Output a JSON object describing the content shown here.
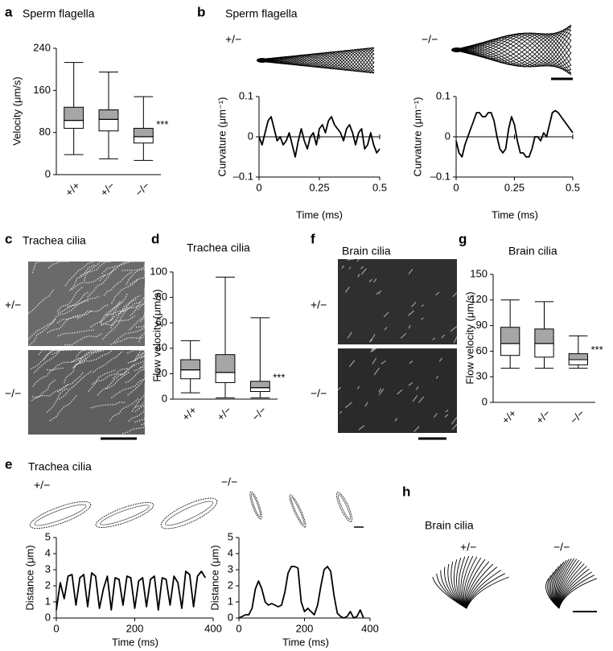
{
  "chart_data": [
    {
      "type": "box",
      "label": "a",
      "title": "Sperm flagella",
      "y_label": "Velocity (μm/s)",
      "categories": [
        "+/+",
        "+/−",
        "−/−"
      ],
      "boxes": [
        {
          "min": 38,
          "q1": 88,
          "median": 103,
          "q3": 128,
          "max": 213
        },
        {
          "min": 30,
          "q1": 83,
          "median": 105,
          "q3": 123,
          "max": 195
        },
        {
          "min": 27,
          "q1": 60,
          "median": 72,
          "q3": 88,
          "max": 148
        }
      ],
      "ylim": [
        0,
        240
      ],
      "yticks": [
        0,
        80,
        160,
        240
      ],
      "annotation": "***",
      "colors": {
        "upper": "#a6a6a6",
        "lower": "#ffffff"
      }
    },
    {
      "type": "line",
      "y_label": "Curvature (μm⁻¹)",
      "x_label": "Time (ms)",
      "x": [
        0,
        0.0125,
        0.025,
        0.0375,
        0.05,
        0.0625,
        0.075,
        0.0875,
        0.1,
        0.1125,
        0.125,
        0.1375,
        0.15,
        0.1625,
        0.175,
        0.1875,
        0.2,
        0.2125,
        0.225,
        0.2375,
        0.25,
        0.2625,
        0.275,
        0.2875,
        0.3,
        0.3125,
        0.325,
        0.3375,
        0.35,
        0.3625,
        0.375,
        0.3875,
        0.4,
        0.4125,
        0.425,
        0.4375,
        0.45,
        0.4625,
        0.475,
        0.4875,
        0.5
      ],
      "series": [
        {
          "color": "#000000",
          "values": [
            0,
            -0.02,
            0.01,
            0.04,
            0.05,
            0.02,
            -0.01,
            0,
            -0.02,
            -0.01,
            0.01,
            -0.02,
            -0.05,
            -0.01,
            0.02,
            -0.01,
            -0.03,
            0,
            0.01,
            -0.02,
            0.02,
            0.03,
            0.01,
            0.04,
            0.05,
            0.03,
            0.02,
            0.01,
            -0.01,
            0.02,
            0.03,
            0.01,
            -0.02,
            0.01,
            0.02,
            -0.03,
            -0.02,
            0.01,
            -0.02,
            -0.04,
            -0.03
          ]
        }
      ],
      "xlim": [
        0,
        0.5
      ],
      "ylim": [
        -0.1,
        0.1
      ],
      "xticks": [
        0,
        0.25,
        0.5
      ],
      "yticks": [
        {
          "value": -0.1,
          "label": "–0.1"
        },
        0,
        0.1
      ]
    },
    {
      "type": "line",
      "y_label": "Curvature (μm⁻¹)",
      "x_label": "Time (ms)",
      "x": [
        0,
        0.0125,
        0.025,
        0.0375,
        0.05,
        0.0625,
        0.075,
        0.0875,
        0.1,
        0.1125,
        0.125,
        0.1375,
        0.15,
        0.1625,
        0.175,
        0.1875,
        0.2,
        0.2125,
        0.225,
        0.2375,
        0.25,
        0.2625,
        0.275,
        0.2875,
        0.3,
        0.3125,
        0.325,
        0.3375,
        0.35,
        0.3625,
        0.375,
        0.3875,
        0.4,
        0.4125,
        0.425,
        0.4375,
        0.45,
        0.4625,
        0.475,
        0.4875,
        0.5
      ],
      "series": [
        {
          "color": "#000000",
          "values": [
            -0.01,
            -0.04,
            -0.05,
            -0.02,
            0,
            0.02,
            0.04,
            0.06,
            0.06,
            0.05,
            0.05,
            0.06,
            0.06,
            0.04,
            0,
            -0.03,
            -0.04,
            -0.03,
            0.02,
            0.05,
            0.03,
            -0.01,
            -0.04,
            -0.04,
            -0.05,
            -0.05,
            -0.03,
            0,
            0,
            -0.01,
            0.01,
            0,
            0.03,
            0.06,
            0.065,
            0.06,
            0.05,
            0.04,
            0.03,
            0.02,
            0.01
          ]
        }
      ],
      "xlim": [
        0,
        0.5
      ],
      "ylim": [
        -0.1,
        0.1
      ],
      "xticks": [
        0,
        0.25,
        0.5
      ],
      "yticks": [
        {
          "value": -0.1,
          "label": "–0.1"
        },
        0,
        0.1
      ]
    },
    {
      "type": "box",
      "label": "d",
      "title": "Trachea cilia",
      "y_label": "Flow velocity (μm/s)",
      "categories": [
        "+/+",
        "+/−",
        "−/−"
      ],
      "boxes": [
        {
          "min": 5,
          "q1": 16,
          "median": 23,
          "q3": 31,
          "max": 46
        },
        {
          "min": 1,
          "q1": 13,
          "median": 21,
          "q3": 35,
          "max": 96
        },
        {
          "min": 1,
          "q1": 6,
          "median": 9,
          "q3": 14,
          "max": 64
        }
      ],
      "ylim": [
        0,
        100
      ],
      "yticks": [
        0,
        20,
        40,
        60,
        80,
        100
      ],
      "annotation": "***",
      "colors": {
        "upper": "#a6a6a6",
        "lower": "#ffffff"
      }
    },
    {
      "type": "box",
      "label": "g",
      "title": "Brain cilia",
      "y_label": "Flow velocity (μm/s)",
      "categories": [
        "+/+",
        "+/−",
        "−/−"
      ],
      "boxes": [
        {
          "min": 40,
          "q1": 55,
          "median": 69,
          "q3": 88,
          "max": 120
        },
        {
          "min": 40,
          "q1": 53,
          "median": 69,
          "q3": 86,
          "max": 118
        },
        {
          "min": 40,
          "q1": 44,
          "median": 50,
          "q3": 57,
          "max": 78
        }
      ],
      "ylim": [
        0,
        150
      ],
      "yticks": [
        0,
        30,
        60,
        90,
        120,
        150
      ],
      "annotation": "***",
      "colors": {
        "upper": "#a6a6a6",
        "lower": "#ffffff"
      }
    },
    {
      "type": "line",
      "y_label": "Distance (μm)",
      "x_label": "Time (ms)",
      "x": [
        0,
        10,
        20,
        30,
        40,
        50,
        60,
        70,
        80,
        90,
        100,
        110,
        120,
        130,
        140,
        150,
        160,
        170,
        180,
        190,
        200,
        210,
        220,
        230,
        240,
        250,
        260,
        270,
        280,
        290,
        300,
        310,
        320,
        330,
        340,
        350,
        360,
        370,
        380
      ],
      "series": [
        {
          "color": "#000000",
          "values": [
            0.5,
            2.2,
            1.2,
            2.6,
            2.7,
            0.8,
            2.5,
            2.7,
            0.7,
            2.8,
            2.6,
            0.6,
            1.8,
            2.6,
            0.5,
            2.5,
            2.4,
            0.8,
            2.6,
            2.5,
            0.6,
            2.3,
            2.5,
            0.7,
            2.4,
            2.6,
            0.5,
            2.5,
            2.4,
            0.8,
            2.6,
            2.2,
            0.6,
            2.9,
            2.7,
            0.7,
            2.6,
            2.9,
            2.5
          ]
        }
      ],
      "xlim": [
        0,
        400
      ],
      "ylim": [
        0,
        5
      ],
      "xticks": [
        0,
        200,
        400
      ],
      "yticks": [
        0,
        1,
        2,
        3,
        4,
        5
      ]
    },
    {
      "type": "line",
      "y_label": "Distance (μm)",
      "x_label": "Time (ms)",
      "x": [
        0,
        10,
        20,
        30,
        40,
        50,
        60,
        70,
        80,
        90,
        100,
        110,
        120,
        130,
        140,
        150,
        160,
        170,
        180,
        190,
        200,
        210,
        220,
        230,
        240,
        250,
        260,
        270,
        280,
        290,
        300,
        310,
        320,
        330,
        340,
        350,
        360,
        370,
        380
      ],
      "series": [
        {
          "color": "#000000",
          "values": [
            0,
            0.1,
            0.2,
            0.2,
            0.6,
            1.8,
            2.3,
            1.8,
            1,
            0.8,
            0.9,
            0.8,
            0.7,
            0.8,
            1.6,
            2.8,
            3.2,
            3.2,
            3.1,
            1,
            0.4,
            0.6,
            0.4,
            0.2,
            0.8,
            2,
            3,
            3.2,
            2.9,
            1.4,
            0.3,
            0.1,
            0,
            0.1,
            0.4,
            0,
            0.1,
            0.5,
            0
          ]
        }
      ],
      "xlim": [
        0,
        400
      ],
      "ylim": [
        0,
        5
      ],
      "xticks": [
        0,
        200,
        400
      ],
      "yticks": [
        0,
        1,
        2,
        3,
        4,
        5
      ]
    }
  ],
  "panels": [
    {
      "label": "b",
      "title": "Sperm flagella",
      "genotypes": [
        "+/−",
        "−/−"
      ]
    },
    {
      "label": "c",
      "title": "Trachea cilia",
      "genotypes": [
        "+/−",
        "−/−"
      ]
    },
    {
      "label": "e",
      "title": "Trachea cilia",
      "genotypes": [
        "+/−",
        "−/−"
      ]
    },
    {
      "label": "f",
      "title": "Brain cilia",
      "genotypes": [
        "+/−",
        "−/−"
      ]
    },
    {
      "label": "h",
      "title": "Brain cilia",
      "genotypes": [
        "+/−",
        "−/−"
      ]
    }
  ]
}
